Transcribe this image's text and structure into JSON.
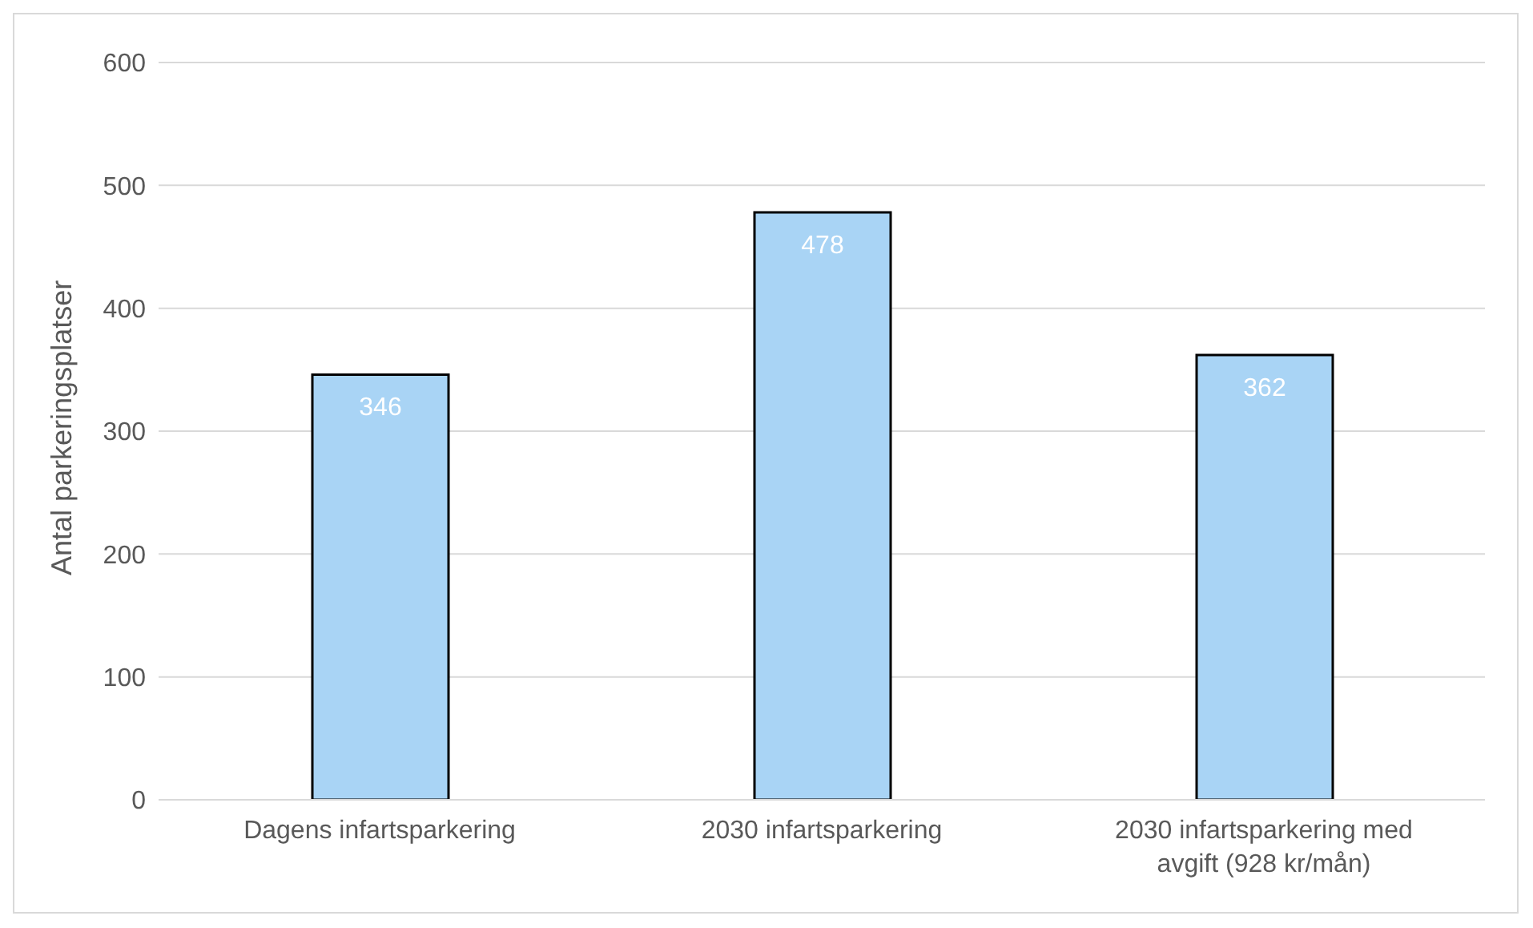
{
  "chart_data": {
    "type": "bar",
    "ylabel": "Antal parkeringsplatser",
    "categories": [
      "Dagens infartsparkering",
      "2030 infartsparkering",
      "2030 infartsparkering med avgift (928 kr/mån)"
    ],
    "values": [
      346,
      478,
      362
    ],
    "color": "#a9d4f5",
    "ylim": [
      0,
      600
    ],
    "yticks": [
      0,
      100,
      200,
      300,
      400,
      500,
      600
    ],
    "grid": "y",
    "data_labels": true
  }
}
